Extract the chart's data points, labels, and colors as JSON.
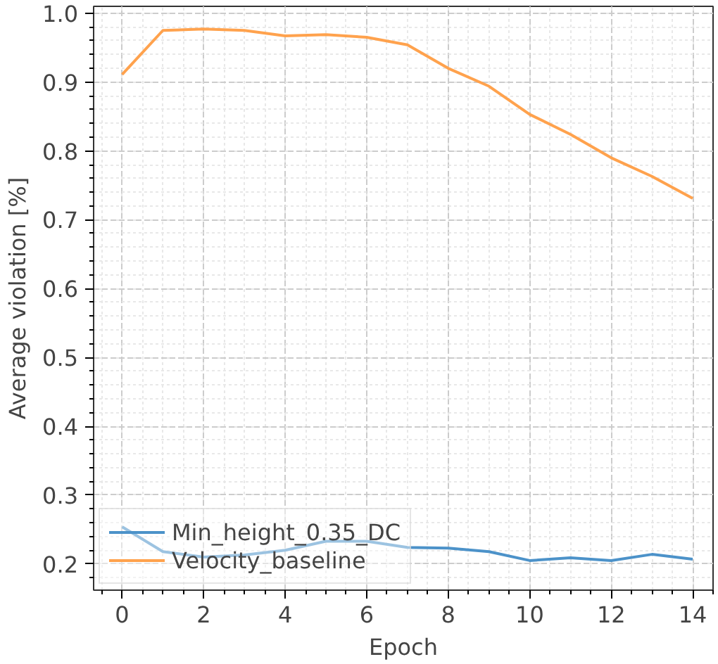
{
  "chart_data": {
    "type": "line",
    "xlabel": "Epoch",
    "ylabel": "Average violation [%]",
    "x": [
      0,
      1,
      2,
      3,
      4,
      5,
      6,
      7,
      8,
      9,
      10,
      11,
      12,
      13,
      14
    ],
    "series": [
      {
        "name": "Min_height_0.35_DC",
        "color": "#4c92c9",
        "values": [
          0.254,
          0.218,
          0.21,
          0.213,
          0.22,
          0.233,
          0.233,
          0.224,
          0.223,
          0.218,
          0.205,
          0.209,
          0.205,
          0.214,
          0.207
        ]
      },
      {
        "name": "Velocity_baseline",
        "color": "#ffa24d",
        "values": [
          0.911,
          0.975,
          0.977,
          0.975,
          0.967,
          0.969,
          0.965,
          0.954,
          0.92,
          0.894,
          0.853,
          0.824,
          0.79,
          0.763,
          0.731
        ]
      }
    ],
    "xlim": [
      -0.7,
      14.5
    ],
    "ylim": [
      0.162,
      1.01
    ],
    "xticks": [
      0,
      2,
      4,
      6,
      8,
      10,
      12,
      14
    ],
    "yticks": [
      0.2,
      0.3,
      0.4,
      0.5,
      0.6,
      0.7,
      0.8,
      0.9,
      {
        "value": 1,
        "label": "1.0"
      }
    ],
    "grid": true,
    "legend": "bottom left",
    "marker": "none",
    "line_style": "solid"
  }
}
